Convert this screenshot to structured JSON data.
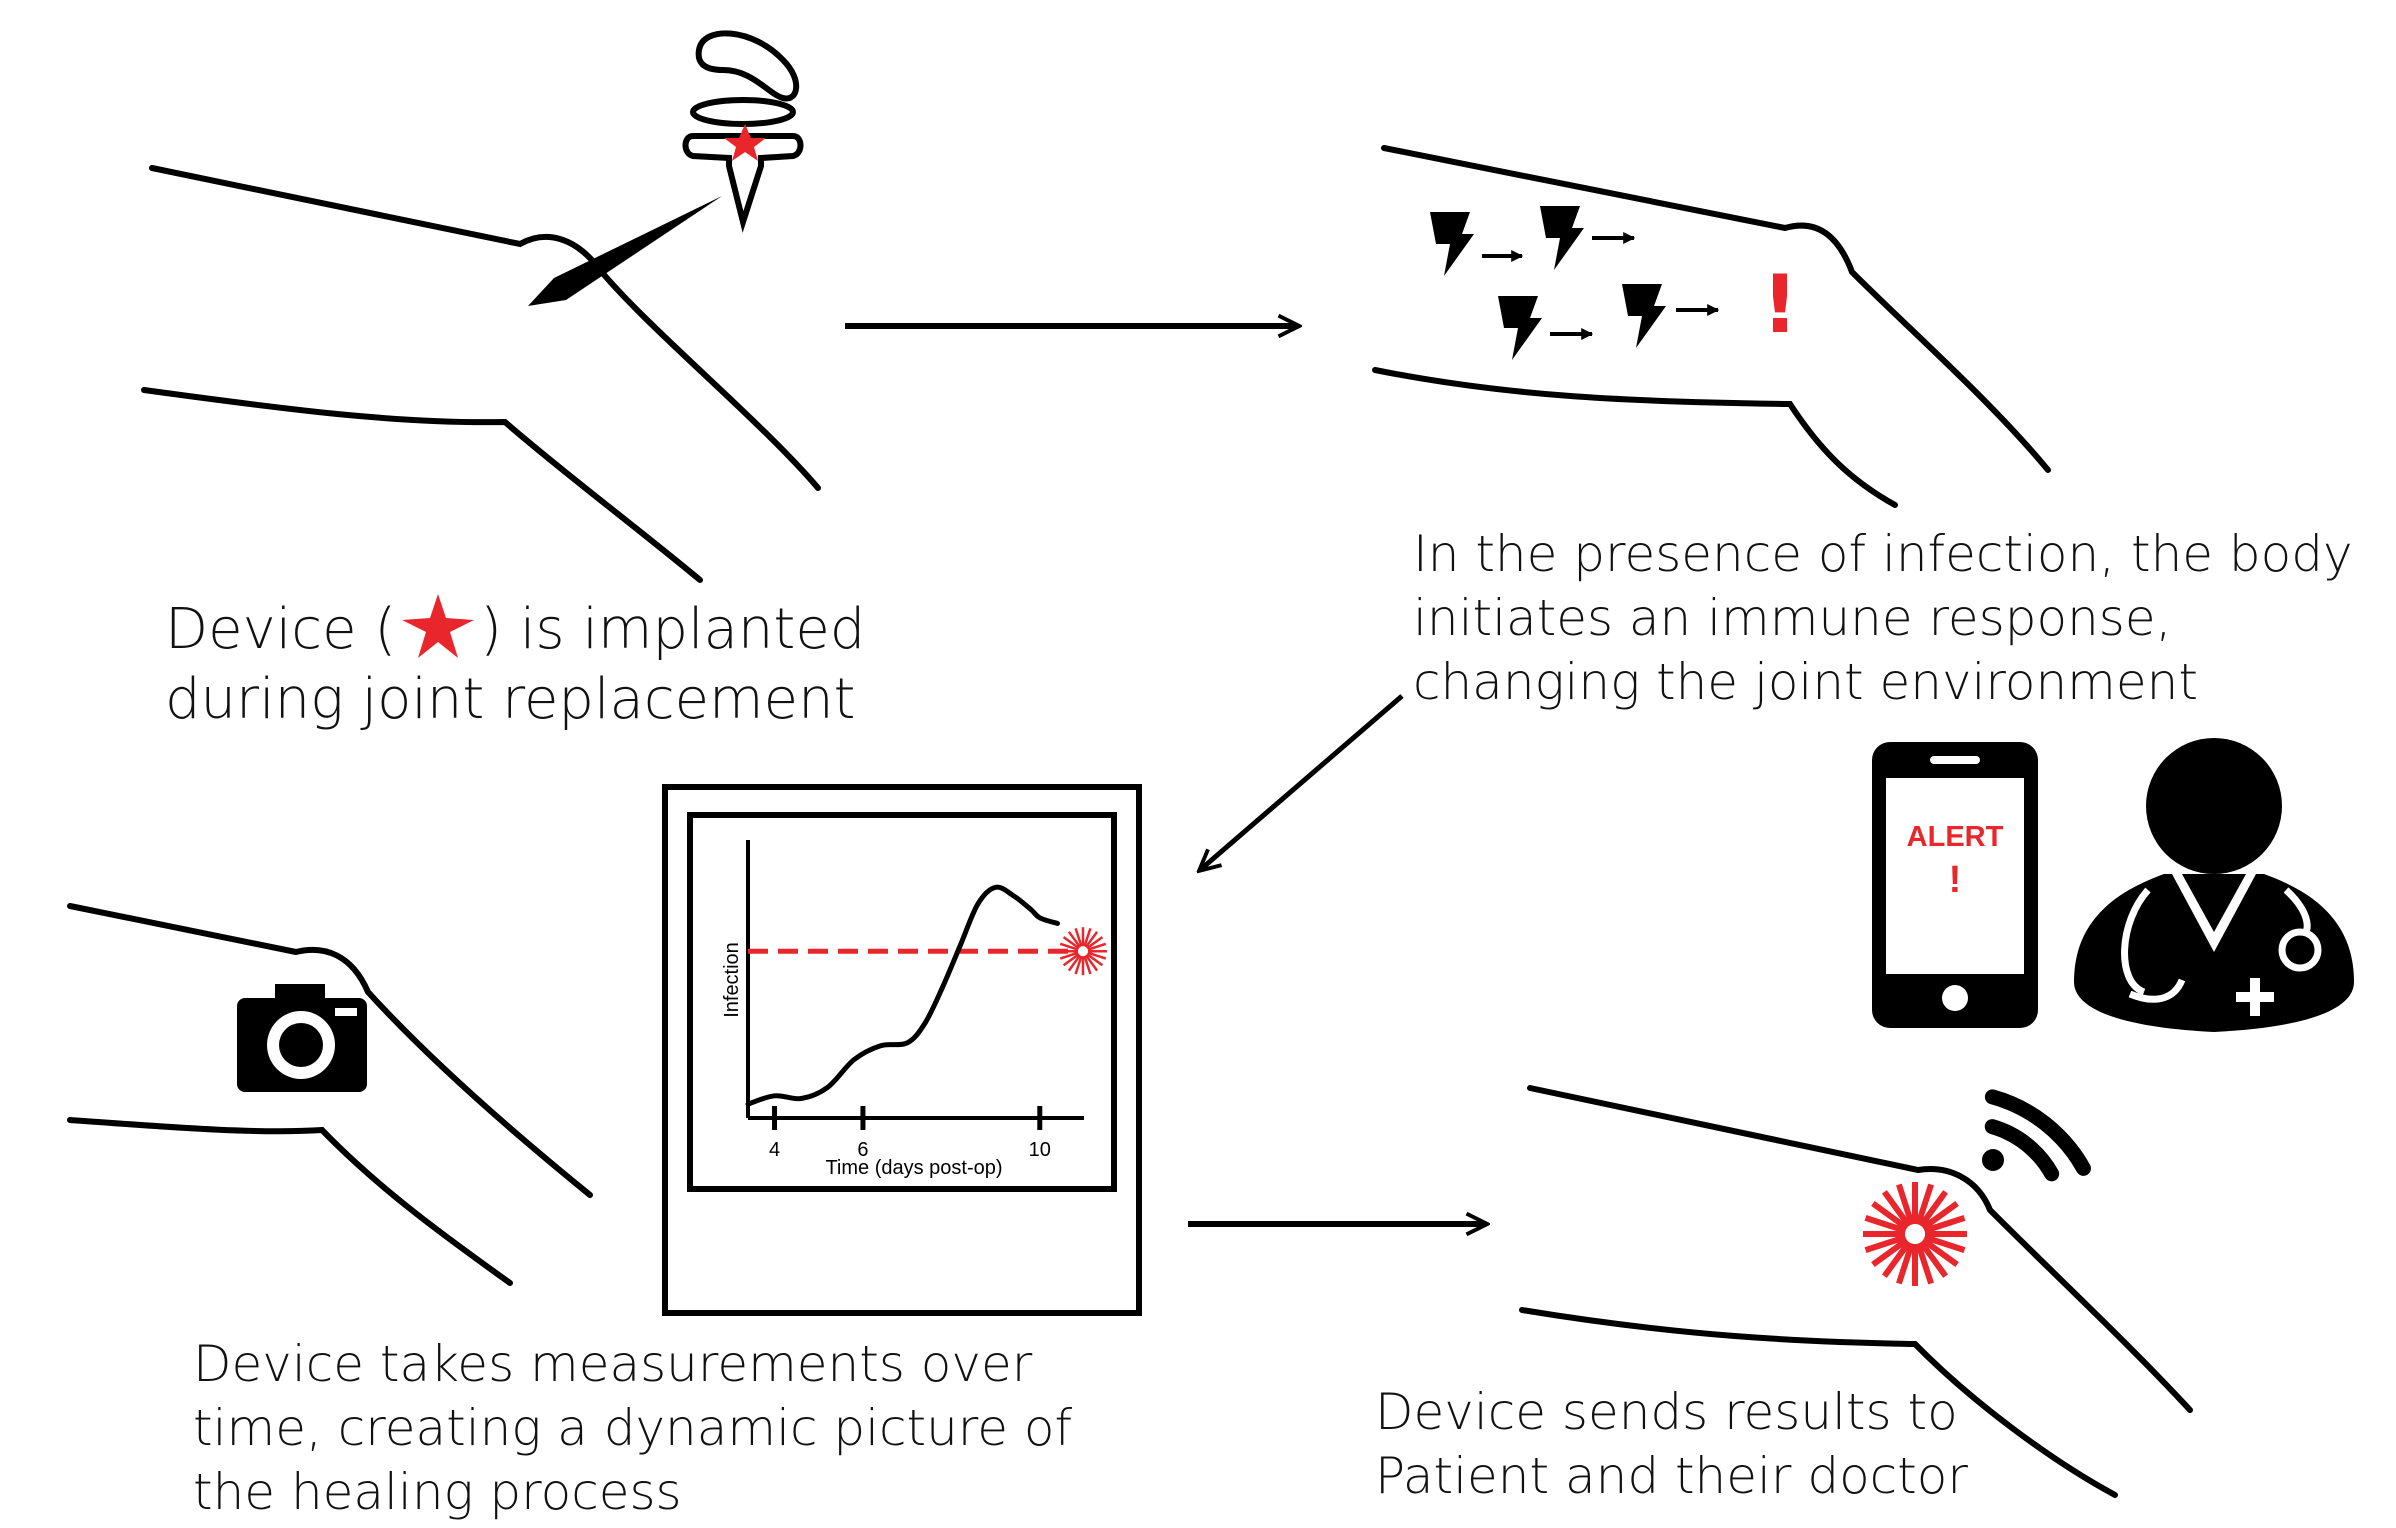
{
  "colors": {
    "ink": "#000000",
    "accent_red": "#e8262b",
    "background": "#ffffff"
  },
  "icons": [
    "implant-device-icon",
    "star-icon",
    "lightning-icon",
    "exclamation-icon",
    "camera-icon",
    "burst-icon",
    "phone-icon",
    "doctor-icon",
    "wifi-icon",
    "arrow-icon"
  ],
  "captions": {
    "implant": {
      "part1": "Device (",
      "part2": ") is implanted",
      "line2": "during joint replacement"
    },
    "infection": {
      "line1": "In the presence of infection, the body",
      "line2": "initiates an immune response,",
      "line3": "changing the joint environment"
    },
    "measure": {
      "line1": "Device takes measurements over",
      "line2": "time, creating a dynamic picture of",
      "line3": "the healing process"
    },
    "send": {
      "line1": "Device sends results to",
      "line2": "Patient and their doctor"
    }
  },
  "alert": {
    "title": "ALERT",
    "mark": "!"
  },
  "infection_mark": "!",
  "chart_data": {
    "type": "line",
    "xlabel": "Time (days post-op)",
    "ylabel": "Infection",
    "x_ticks": [
      4,
      6,
      10
    ],
    "xlim": [
      3.4,
      11.0
    ],
    "ylim": [
      0,
      1
    ],
    "threshold": 0.6,
    "x": [
      3.4,
      4.0,
      4.6,
      5.2,
      5.8,
      6.4,
      7.0,
      7.4,
      7.8,
      8.2,
      8.6,
      9.0,
      9.4,
      9.8,
      10.0,
      10.4
    ],
    "values": [
      0.05,
      0.08,
      0.07,
      0.11,
      0.21,
      0.26,
      0.27,
      0.34,
      0.47,
      0.62,
      0.77,
      0.83,
      0.8,
      0.75,
      0.72,
      0.7
    ]
  }
}
